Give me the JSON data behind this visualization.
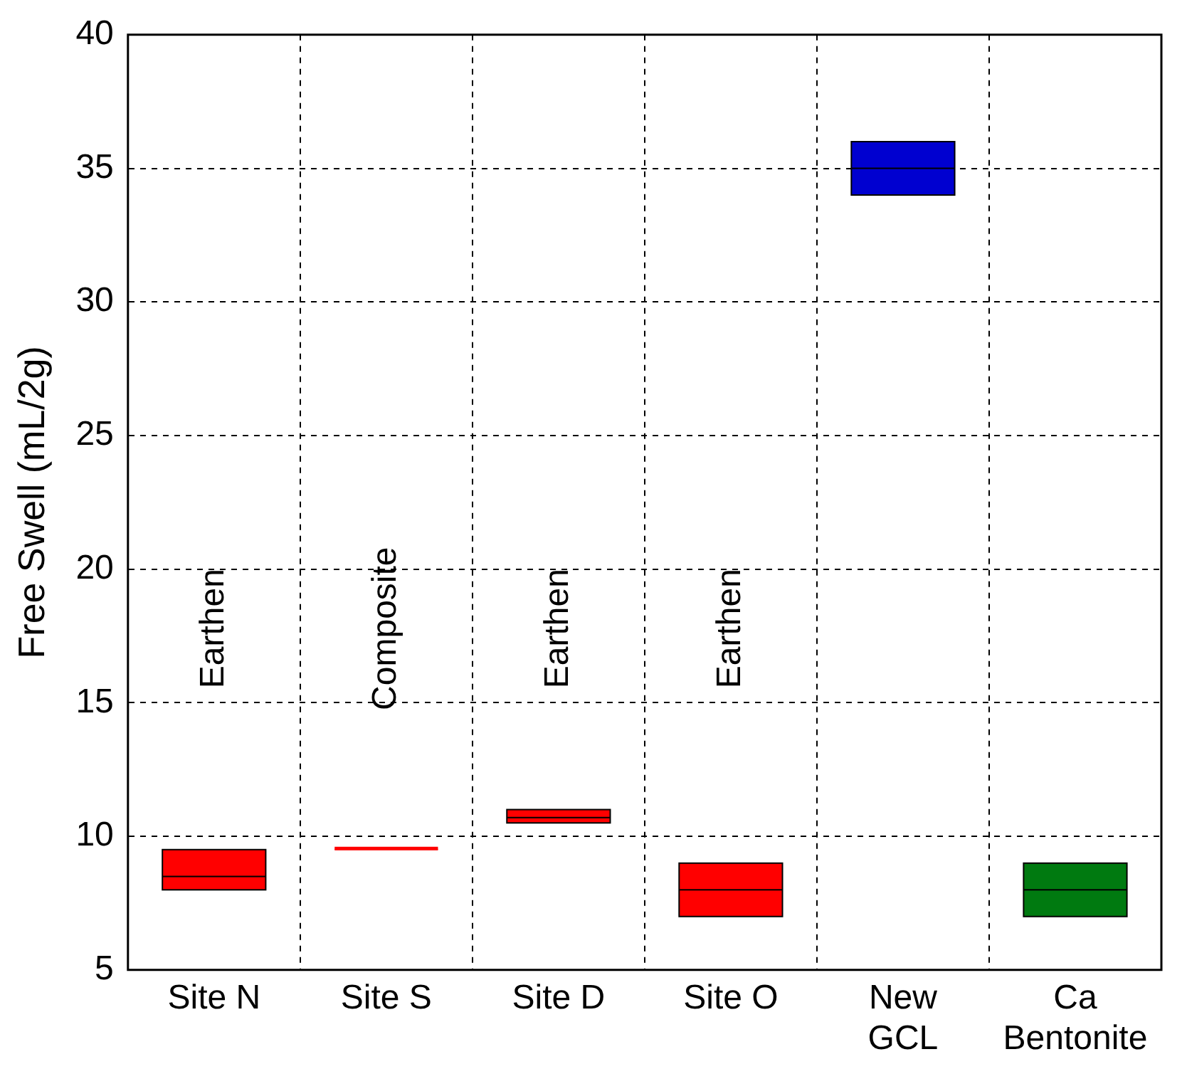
{
  "chart_data": {
    "type": "box",
    "ylabel": "Free Swell (mL/2g)",
    "categories": [
      "Site N",
      "Site S",
      "Site D",
      "Site O",
      "New\nGCL",
      "Ca\nBentonite"
    ],
    "boxes": [
      {
        "low": 8,
        "q1": 8,
        "median": 8.5,
        "q3": 9.5,
        "high": 9.5
      },
      {
        "low": 9.5,
        "q1": 9.5,
        "median": 9.5,
        "q3": 9.5,
        "high": 9.5
      },
      {
        "low": 10.5,
        "q1": 10.5,
        "median": 10.7,
        "q3": 11,
        "high": 11
      },
      {
        "low": 7,
        "q1": 7,
        "median": 8,
        "q3": 9,
        "high": 9
      },
      {
        "low": 34,
        "q1": 34,
        "median": 35,
        "q3": 36,
        "high": 36
      },
      {
        "low": 7,
        "q1": 7,
        "median": 8,
        "q3": 9,
        "high": 9
      }
    ],
    "colors": [
      "#ff0000",
      "#ff0000",
      "#ff0000",
      "#ff0000",
      "#0000d0",
      "#007a10"
    ],
    "ylim": [
      5,
      40
    ],
    "yticks": [
      5,
      10,
      15,
      20,
      25,
      30,
      35,
      40
    ],
    "grid": true,
    "legend": false,
    "annotations": [
      "Earthen",
      "Composite",
      "Earthen",
      "Earthen"
    ]
  }
}
